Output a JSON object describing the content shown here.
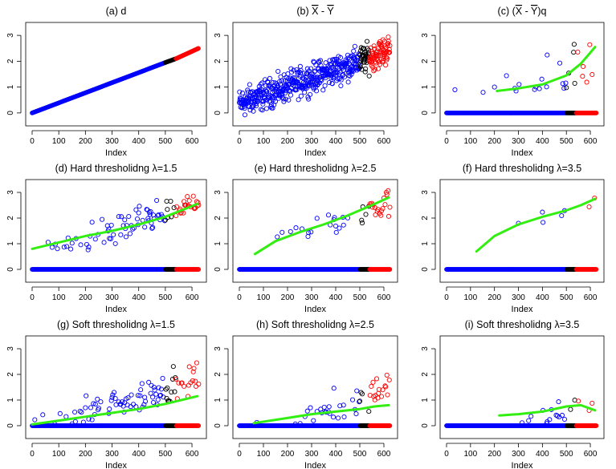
{
  "chart_data": [
    {
      "id": "a",
      "type": "scatter",
      "title": "(a) d",
      "xlabel": "Index",
      "ylabel": "",
      "xlim": [
        0,
        630
      ],
      "ylim": [
        -0.5,
        3.5
      ],
      "xticks": [
        0,
        100,
        200,
        300,
        400,
        500,
        600
      ],
      "yticks": [
        0,
        1,
        2,
        3
      ],
      "series": [
        {
          "name": "blue",
          "color": "#0000ff",
          "description": "dense linear ramp",
          "x_range": [
            0,
            500
          ],
          "y_range": [
            0,
            1.95
          ]
        },
        {
          "name": "black",
          "color": "#000000",
          "x_range": [
            500,
            540
          ],
          "y_range": [
            1.95,
            2.1
          ]
        },
        {
          "name": "red",
          "color": "#ff0000",
          "x_range": [
            540,
            625
          ],
          "y_range": [
            2.1,
            2.5
          ]
        }
      ]
    },
    {
      "id": "b",
      "type": "scatter",
      "title": "(b) X - Y",
      "title_overlined": [
        "X",
        "Y"
      ],
      "xlabel": "Index",
      "ylabel": "",
      "xlim": [
        0,
        630
      ],
      "ylim": [
        -0.5,
        3.5
      ],
      "xticks": [
        0,
        100,
        200,
        300,
        400,
        500,
        600
      ],
      "yticks": [
        0,
        1,
        2,
        3
      ],
      "series": [
        {
          "name": "blue",
          "color": "#0000ff",
          "x_range": [
            0,
            500
          ],
          "trend": [
            0.3,
            1.9
          ],
          "spread": 1.0
        },
        {
          "name": "black",
          "color": "#000000",
          "x_range": [
            500,
            540
          ],
          "trend": [
            1.9,
            2.1
          ],
          "spread": 0.8
        },
        {
          "name": "red",
          "color": "#ff0000",
          "x_range": [
            540,
            625
          ],
          "trend": [
            2.1,
            2.6
          ],
          "spread": 0.9
        }
      ]
    },
    {
      "id": "c",
      "type": "scatter",
      "title": "(c) (X - Y)q",
      "title_overlined": [
        "X",
        "Y"
      ],
      "xlabel": "Index",
      "ylabel": "",
      "xlim": [
        0,
        630
      ],
      "ylim": [
        -0.5,
        3.5
      ],
      "xticks": [
        0,
        100,
        200,
        300,
        400,
        500,
        600
      ],
      "yticks": [
        0,
        1,
        2,
        3
      ],
      "fit_line": {
        "color": "#33ee11",
        "x": [
          210,
          300,
          400,
          500,
          560,
          620
        ],
        "y": [
          0.85,
          0.95,
          1.1,
          1.45,
          1.9,
          2.55
        ]
      },
      "zero_band": true,
      "nonzero_fraction": 0.15
    },
    {
      "id": "d",
      "type": "scatter",
      "title": "(d) Hard thresholidng λ=1.5",
      "xlabel": "Index",
      "ylabel": "",
      "xlim": [
        0,
        630
      ],
      "ylim": [
        -0.5,
        3.5
      ],
      "xticks": [
        0,
        100,
        200,
        300,
        400,
        500,
        600
      ],
      "yticks": [
        0,
        1,
        2,
        3
      ],
      "fit_line": {
        "color": "#33ee11",
        "x": [
          0,
          100,
          200,
          300,
          400,
          500,
          620
        ],
        "y": [
          0.8,
          1.05,
          1.3,
          1.5,
          1.75,
          2.05,
          2.55
        ]
      },
      "zero_band": true,
      "nonzero_fraction": 0.55,
      "threshold": 1.5
    },
    {
      "id": "e",
      "type": "scatter",
      "title": "(e) Hard thresholidng λ=2.5",
      "xlabel": "Index",
      "ylabel": "",
      "xlim": [
        0,
        630
      ],
      "ylim": [
        -0.5,
        3.5
      ],
      "xticks": [
        0,
        100,
        200,
        300,
        400,
        500,
        600
      ],
      "yticks": [
        0,
        1,
        2,
        3
      ],
      "fit_line": {
        "color": "#33ee11",
        "x": [
          65,
          150,
          250,
          350,
          450,
          550,
          620
        ],
        "y": [
          0.6,
          1.1,
          1.45,
          1.75,
          2.1,
          2.5,
          2.8
        ]
      },
      "zero_band": true,
      "nonzero_fraction": 0.25,
      "threshold": 2.5
    },
    {
      "id": "f",
      "type": "scatter",
      "title": "(f) Hard thresholidng λ=3.5",
      "xlabel": "Index",
      "ylabel": "",
      "xlim": [
        0,
        630
      ],
      "ylim": [
        -0.5,
        3.5
      ],
      "xticks": [
        0,
        100,
        200,
        300,
        400,
        500,
        600
      ],
      "yticks": [
        0,
        1,
        2,
        3
      ],
      "fit_line": {
        "color": "#33ee11",
        "x": [
          125,
          200,
          300,
          400,
          500,
          560,
          620
        ],
        "y": [
          0.7,
          1.3,
          1.75,
          2.05,
          2.3,
          2.5,
          2.75
        ]
      },
      "zero_band": true,
      "nonzero_fraction": 0.1,
      "threshold": 3.5
    },
    {
      "id": "g",
      "type": "scatter",
      "title": "(g) Soft thresholidng λ=1.5",
      "xlabel": "Index",
      "ylabel": "",
      "xlim": [
        0,
        630
      ],
      "ylim": [
        -0.5,
        3.5
      ],
      "xticks": [
        0,
        100,
        200,
        300,
        400,
        500,
        600
      ],
      "yticks": [
        0,
        1,
        2,
        3
      ],
      "fit_line": {
        "color": "#33ee11",
        "x": [
          0,
          100,
          200,
          300,
          400,
          500,
          620
        ],
        "y": [
          0.05,
          0.2,
          0.35,
          0.5,
          0.65,
          0.85,
          1.15
        ]
      },
      "zero_band": true,
      "nonzero_fraction": 0.5,
      "threshold": 1.5
    },
    {
      "id": "h",
      "type": "scatter",
      "title": "(h) Soft thresholidng λ=2.5",
      "xlabel": "Index",
      "ylabel": "",
      "xlim": [
        0,
        630
      ],
      "ylim": [
        -0.5,
        3.5
      ],
      "xticks": [
        0,
        100,
        200,
        300,
        400,
        500,
        600
      ],
      "yticks": [
        0,
        1,
        2,
        3
      ],
      "fit_line": {
        "color": "#33ee11",
        "x": [
          60,
          200,
          300,
          400,
          500,
          560,
          620
        ],
        "y": [
          0.1,
          0.3,
          0.45,
          0.55,
          0.65,
          0.75,
          0.8
        ]
      },
      "zero_band": true,
      "nonzero_fraction": 0.22,
      "threshold": 2.5
    },
    {
      "id": "i",
      "type": "scatter",
      "title": "(i) Soft thresholidng λ=3.5",
      "xlabel": "Index",
      "ylabel": "",
      "xlim": [
        0,
        630
      ],
      "ylim": [
        -0.5,
        3.5
      ],
      "xticks": [
        0,
        100,
        200,
        300,
        400,
        500,
        600
      ],
      "yticks": [
        0,
        1,
        2,
        3
      ],
      "fit_line": {
        "color": "#33ee11",
        "x": [
          220,
          300,
          400,
          500,
          560,
          620
        ],
        "y": [
          0.4,
          0.45,
          0.55,
          0.75,
          0.8,
          0.6
        ]
      },
      "zero_band": true,
      "nonzero_fraction": 0.08,
      "threshold": 3.5
    }
  ]
}
